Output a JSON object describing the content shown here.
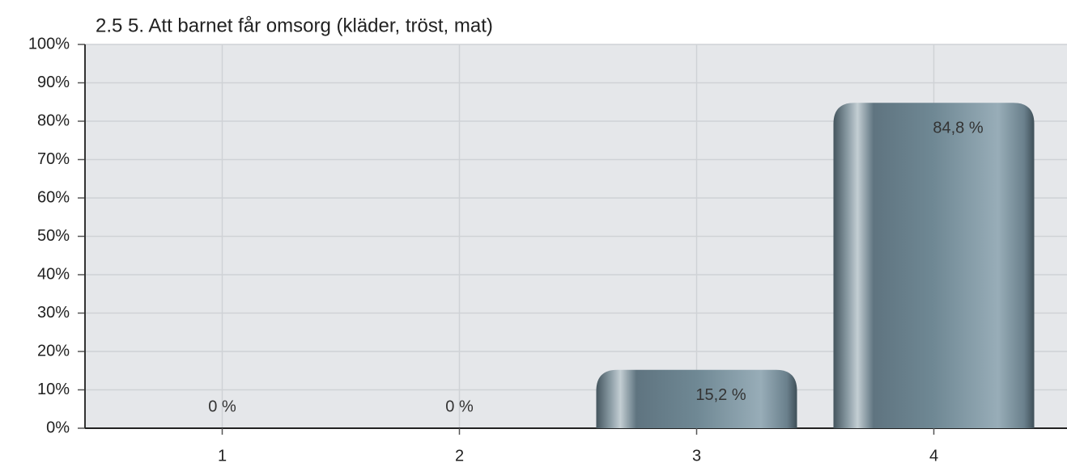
{
  "chart_data": {
    "type": "bar",
    "title": "2.5 5. Att barnet får omsorg (kläder, tröst, mat)",
    "categories": [
      "1",
      "2",
      "3",
      "4"
    ],
    "values": [
      0,
      0,
      15.2,
      84.8
    ],
    "value_labels": [
      "0 %",
      "0 %",
      "15,2 %",
      "84,8 %"
    ],
    "color": "#6f8894",
    "ylim": [
      0,
      100
    ],
    "yticks": [
      {
        "value": 0,
        "label": "0%"
      },
      {
        "value": 10,
        "label": "10%"
      },
      {
        "value": 20,
        "label": "20%"
      },
      {
        "value": 30,
        "label": "30%"
      },
      {
        "value": 40,
        "label": "40%"
      },
      {
        "value": 50,
        "label": "50%"
      },
      {
        "value": 60,
        "label": "60%"
      },
      {
        "value": 70,
        "label": "70%"
      },
      {
        "value": 80,
        "label": "80%"
      },
      {
        "value": 90,
        "label": "90%"
      },
      {
        "value": 100,
        "label": "100%"
      }
    ],
    "grid": true
  }
}
